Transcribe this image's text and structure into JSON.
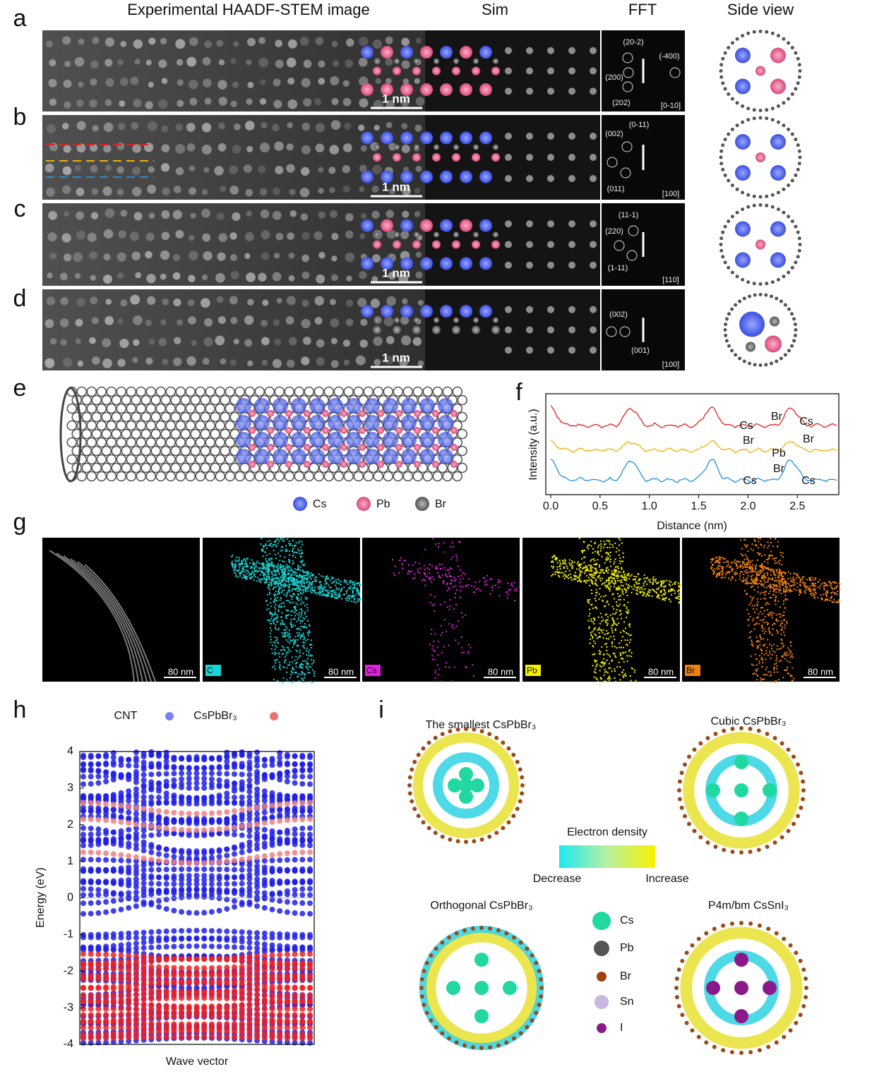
{
  "panel_labels": [
    "a",
    "b",
    "c",
    "d",
    "e",
    "f",
    "g",
    "h",
    "i"
  ],
  "column_headers": [
    "Experimental HAADF-STEM image",
    "Sim",
    "FFT",
    "Side view"
  ],
  "rows": [
    {
      "scale_bar": "1 nm",
      "fft_spots": [
        "(20-2)",
        "(-400)",
        "(200)",
        "(202)"
      ],
      "zone_axis": "[0-10]"
    },
    {
      "scale_bar": "1 nm",
      "fft_spots": [
        "(0-11)",
        "(002)",
        "(011)"
      ],
      "zone_axis": "[100]"
    },
    {
      "scale_bar": "1 nm",
      "fft_spots": [
        "(11-1)",
        "(220)",
        "(1-11)"
      ],
      "zone_axis": "[110]"
    },
    {
      "scale_bar": "1 nm",
      "fft_spots": [
        "(002)",
        "(001)"
      ],
      "zone_axis": "[100]"
    }
  ],
  "panel_e": {
    "legend": [
      "Cs",
      "Pb",
      "Br"
    ]
  },
  "panel_f": {
    "ylabel": "Intensity (a.u.)",
    "xlabel": "Distance (nm)",
    "xlim": [
      -0.05,
      2.92
    ],
    "xticks": [
      {
        "value": 0,
        "label": "0.0"
      },
      0.5,
      {
        "value": 1,
        "label": "1.0"
      },
      1.5,
      {
        "value": 2,
        "label": "2.0"
      },
      2.5
    ],
    "annotations": [
      "Cs",
      "Br",
      "Cs",
      "Br",
      "Pb",
      "Br",
      "Br",
      "Cs",
      "Cs"
    ]
  },
  "panel_g": {
    "scale_bar": "80 nm",
    "elements": [
      {
        "name": "C",
        "color": "#18d6d6"
      },
      {
        "name": "Cs",
        "color": "#e020e0"
      },
      {
        "name": "Pb",
        "color": "#f2f000"
      },
      {
        "name": "Br",
        "color": "#f08010"
      }
    ]
  },
  "panel_h": {
    "legend": [
      "CNT",
      "CsPbBr₃"
    ],
    "ylabel": "Energy (eV)",
    "xlabel": "Wave vector",
    "ylim": [
      -4,
      4
    ],
    "yticks": [
      4,
      3,
      2,
      1,
      0,
      -1,
      -2,
      -3,
      -4
    ]
  },
  "panel_i": {
    "titles": [
      "The smallest CsPbBr₃",
      "Cubic CsPbBr₃",
      "Orthogonal CsPbBr₃",
      "P4m/bm CsSnI₃"
    ],
    "colorbar_title": "Electron density",
    "colorbar_low": "Decrease",
    "colorbar_high": "Increase",
    "legend": [
      "Cs",
      "Pb",
      "Br",
      "Sn",
      "I"
    ]
  }
}
